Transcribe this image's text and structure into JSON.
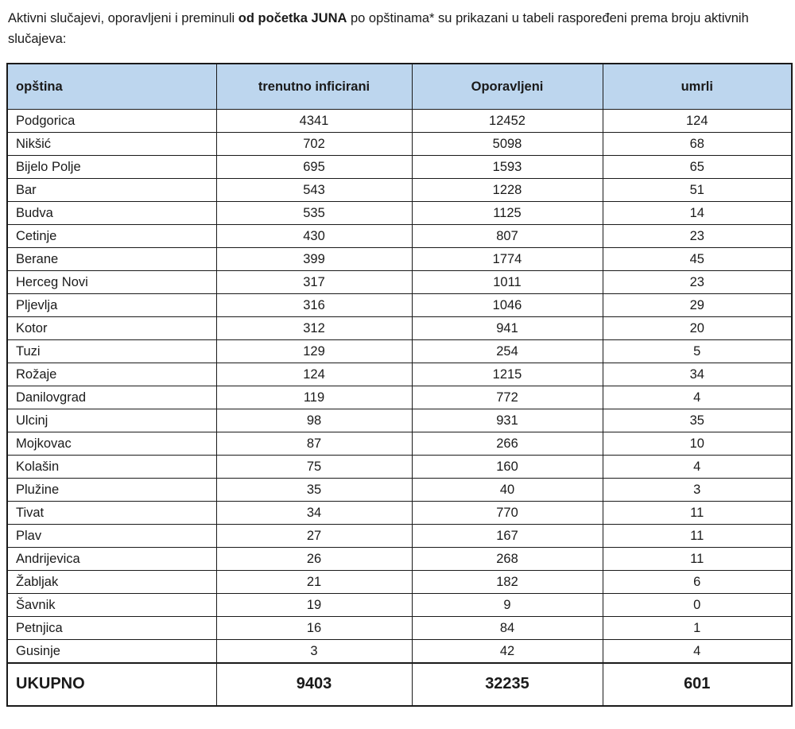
{
  "intro": {
    "pre": "Aktivni slučajevi, oporavljeni i preminuli ",
    "bold": "od početka JUNA",
    "post": " po opštinama* su prikazani u tabeli raspoređeni prema broju aktivnih slučajeva:"
  },
  "table": {
    "header_bg": "#bdd6ee",
    "headers": [
      "opština",
      "trenutno inficirani",
      "Oporavljeni",
      "umrli"
    ],
    "rows": [
      [
        "Podgorica",
        "4341",
        "12452",
        "124"
      ],
      [
        "Nikšić",
        "702",
        "5098",
        "68"
      ],
      [
        "Bijelo Polje",
        "695",
        "1593",
        "65"
      ],
      [
        "Bar",
        "543",
        "1228",
        "51"
      ],
      [
        "Budva",
        "535",
        "1125",
        "14"
      ],
      [
        "Cetinje",
        "430",
        "807",
        "23"
      ],
      [
        "Berane",
        "399",
        "1774",
        "45"
      ],
      [
        "Herceg Novi",
        "317",
        "1011",
        "23"
      ],
      [
        "Pljevlja",
        "316",
        "1046",
        "29"
      ],
      [
        "Kotor",
        "312",
        "941",
        "20"
      ],
      [
        "Tuzi",
        "129",
        "254",
        "5"
      ],
      [
        "Rožaje",
        "124",
        "1215",
        "34"
      ],
      [
        "Danilovgrad",
        "119",
        "772",
        "4"
      ],
      [
        "Ulcinj",
        "98",
        "931",
        "35"
      ],
      [
        "Mojkovac",
        "87",
        "266",
        "10"
      ],
      [
        "Kolašin",
        "75",
        "160",
        "4"
      ],
      [
        "Plužine",
        "35",
        "40",
        "3"
      ],
      [
        "Tivat",
        "34",
        "770",
        "11"
      ],
      [
        "Plav",
        "27",
        "167",
        "11"
      ],
      [
        "Andrijevica",
        "26",
        "268",
        "11"
      ],
      [
        "Žabljak",
        "21",
        "182",
        "6"
      ],
      [
        "Šavnik",
        "19",
        "9",
        "0"
      ],
      [
        "Petnjica",
        "16",
        "84",
        "1"
      ],
      [
        "Gusinje",
        "3",
        "42",
        "4"
      ]
    ],
    "total": [
      "UKUPNO",
      "9403",
      "32235",
      "601"
    ]
  }
}
